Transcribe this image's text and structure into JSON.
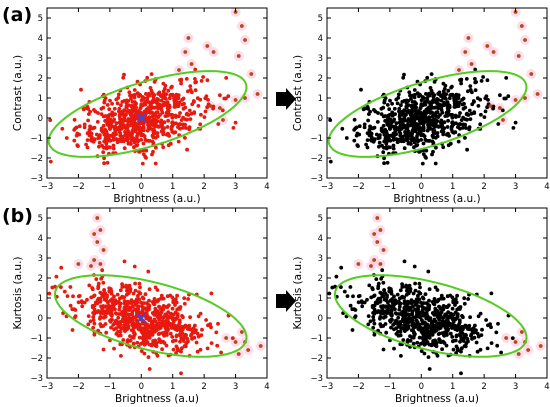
{
  "panel_labels": [
    "(a)",
    "(b)"
  ],
  "colors": {
    "red_points": "#e8190f",
    "black_points": "#000000",
    "outliers": "#b34a1a",
    "outlier_halo": "#ffc0d8",
    "ellipse": "#55cc22",
    "centroid": "#3a4bd6",
    "arrow": "#000000"
  },
  "chart_data": [
    {
      "type": "scatter",
      "title": "",
      "xlabel": "Brightness (a.u.)",
      "ylabel": "Contrast (a.u.)",
      "xlim": [
        -3,
        4
      ],
      "ylim": [
        -3,
        5.5
      ],
      "xticks": [
        -3,
        -2,
        -1,
        0,
        1,
        2,
        3,
        4
      ],
      "yticks": [
        -3,
        -2,
        -1,
        0,
        1,
        2,
        3,
        4,
        5
      ],
      "point_color": "red",
      "show_centroid": true,
      "show_outliers": true,
      "ellipse": {
        "cx": 0.2,
        "cy": 0.2,
        "rx": 3.5,
        "ry": 1.5,
        "angle_deg": 29
      },
      "cluster": {
        "mx": 0.0,
        "my": 0.0,
        "sx": 1.0,
        "sy": 0.9,
        "corr": 0.45,
        "n": 700
      },
      "outliers": [
        [
          3.0,
          5.3
        ],
        [
          3.2,
          4.6
        ],
        [
          3.3,
          3.9
        ],
        [
          3.1,
          3.1
        ],
        [
          1.5,
          4.0
        ],
        [
          1.4,
          3.3
        ],
        [
          1.6,
          2.7
        ],
        [
          2.1,
          3.6
        ],
        [
          2.3,
          3.3
        ],
        [
          1.2,
          2.4
        ],
        [
          3.5,
          2.2
        ],
        [
          3.0,
          0.9
        ],
        [
          3.3,
          1.0
        ],
        [
          2.2,
          0.6
        ],
        [
          2.5,
          0.5
        ],
        [
          3.7,
          1.2
        ],
        [
          2.6,
          -0.1
        ]
      ]
    },
    {
      "type": "scatter",
      "title": "",
      "xlabel": "Brightness (a.u.)",
      "ylabel": "Contrast (a.u.)",
      "xlim": [
        -3,
        4
      ],
      "ylim": [
        -3,
        5.5
      ],
      "xticks": [
        -3,
        -2,
        -1,
        0,
        1,
        2,
        3,
        4
      ],
      "yticks": [
        -3,
        -2,
        -1,
        0,
        1,
        2,
        3,
        4,
        5
      ],
      "point_color": "black",
      "show_centroid": false,
      "show_outliers": true,
      "ellipse": {
        "cx": 0.2,
        "cy": 0.2,
        "rx": 3.5,
        "ry": 1.5,
        "angle_deg": 29
      },
      "cluster": {
        "mx": 0.0,
        "my": 0.0,
        "sx": 1.0,
        "sy": 0.9,
        "corr": 0.45,
        "n": 700
      },
      "outliers": [
        [
          3.0,
          5.3
        ],
        [
          3.2,
          4.6
        ],
        [
          3.3,
          3.9
        ],
        [
          3.1,
          3.1
        ],
        [
          1.5,
          4.0
        ],
        [
          1.4,
          3.3
        ],
        [
          1.6,
          2.7
        ],
        [
          2.1,
          3.6
        ],
        [
          2.3,
          3.3
        ],
        [
          1.2,
          2.4
        ],
        [
          3.5,
          2.2
        ],
        [
          3.0,
          0.9
        ],
        [
          3.3,
          1.0
        ],
        [
          2.2,
          0.6
        ],
        [
          2.5,
          0.5
        ],
        [
          3.7,
          1.2
        ],
        [
          2.6,
          -0.1
        ]
      ]
    },
    {
      "type": "scatter",
      "title": "",
      "xlabel": "Brightness (a.u)",
      "ylabel": "Kurtosis (a.u.)",
      "xlim": [
        -3,
        4
      ],
      "ylim": [
        -3,
        5.5
      ],
      "xticks": [
        -3,
        -2,
        -1,
        0,
        1,
        2,
        3,
        4
      ],
      "yticks": [
        -3,
        -2,
        -1,
        0,
        1,
        2,
        3,
        4,
        5
      ],
      "point_color": "red",
      "show_centroid": true,
      "show_outliers": true,
      "ellipse": {
        "cx": 0.3,
        "cy": 0.1,
        "rx": 3.3,
        "ry": 1.6,
        "angle_deg": -26
      },
      "cluster": {
        "mx": 0.0,
        "my": 0.0,
        "sx": 1.0,
        "sy": 0.85,
        "corr": -0.45,
        "n": 700
      },
      "outliers": [
        [
          -1.4,
          5.0
        ],
        [
          -1.3,
          4.4
        ],
        [
          -1.5,
          4.2
        ],
        [
          -1.4,
          3.8
        ],
        [
          -1.2,
          3.4
        ],
        [
          -1.5,
          2.9
        ],
        [
          -1.3,
          2.7
        ],
        [
          -2.0,
          2.7
        ],
        [
          -1.6,
          2.6
        ],
        [
          2.7,
          -1.0
        ],
        [
          3.0,
          -1.2
        ],
        [
          3.3,
          -1.2
        ],
        [
          3.1,
          -1.8
        ],
        [
          3.4,
          -1.6
        ],
        [
          3.8,
          -1.4
        ],
        [
          3.2,
          -0.7
        ]
      ]
    },
    {
      "type": "scatter",
      "title": "",
      "xlabel": "Brightness (a.u)",
      "ylabel": "Kurtosis (a.u.)",
      "xlim": [
        -3,
        4
      ],
      "ylim": [
        -3,
        5.5
      ],
      "xticks": [
        -3,
        -2,
        -1,
        0,
        1,
        2,
        3,
        4
      ],
      "yticks": [
        -3,
        -2,
        -1,
        0,
        1,
        2,
        3,
        4,
        5
      ],
      "point_color": "black",
      "show_centroid": false,
      "show_outliers": true,
      "ellipse": {
        "cx": 0.3,
        "cy": 0.1,
        "rx": 3.3,
        "ry": 1.6,
        "angle_deg": -26
      },
      "cluster": {
        "mx": 0.0,
        "my": 0.0,
        "sx": 1.0,
        "sy": 0.85,
        "corr": -0.45,
        "n": 700
      },
      "outliers": [
        [
          -1.4,
          5.0
        ],
        [
          -1.3,
          4.4
        ],
        [
          -1.5,
          4.2
        ],
        [
          -1.4,
          3.8
        ],
        [
          -1.2,
          3.4
        ],
        [
          -1.5,
          2.9
        ],
        [
          -1.3,
          2.7
        ],
        [
          -2.0,
          2.7
        ],
        [
          -1.6,
          2.6
        ],
        [
          2.7,
          -1.0
        ],
        [
          3.0,
          -1.2
        ],
        [
          3.3,
          -1.2
        ],
        [
          3.1,
          -1.8
        ],
        [
          3.4,
          -1.6
        ],
        [
          3.8,
          -1.4
        ],
        [
          3.2,
          -0.7
        ]
      ]
    }
  ]
}
